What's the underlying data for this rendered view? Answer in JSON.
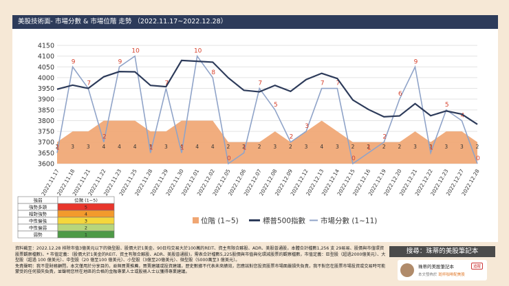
{
  "header": {
    "title": "美股技術面- 市場分數 & 市場位階 走勢 （2022.11.17~2022.12.28）"
  },
  "chart_data": {
    "type": "line",
    "title": "美股技術面- 市場分數 & 市場位階 走勢 （2022.11.17~2022.12.28）",
    "categories": [
      "2022.11.17",
      "2022.11.18",
      "2022.11.21",
      "2022.11.22",
      "2022.11.23",
      "2022.11.25",
      "2022.11.28",
      "2022.11.29",
      "2022.11.30",
      "2022.12.01",
      "2022.12.02",
      "2022.12.05",
      "2022.12.06",
      "2022.12.07",
      "2022.12.08",
      "2022.12.09",
      "2022.12.12",
      "2022.12.13",
      "2022.12.14",
      "2022.12.15",
      "2022.12.16",
      "2022.12.19",
      "2022.12.20",
      "2022.12.21",
      "2022.12.22",
      "2022.12.23",
      "2022.12.27",
      "2022.12.28"
    ],
    "ylim": [
      3600,
      4150
    ],
    "yticks": [
      3600,
      3650,
      3700,
      3750,
      3800,
      3850,
      3900,
      3950,
      4000,
      4050,
      4100,
      4150
    ],
    "series": [
      {
        "name": "位階 (1~5)",
        "kind": "area",
        "color": "#f0a673",
        "values": [
          2,
          3,
          3,
          4,
          4,
          4,
          3,
          3,
          4,
          4,
          4,
          2,
          2,
          2,
          3,
          2,
          3,
          4,
          3,
          2,
          2,
          2,
          2,
          3,
          2,
          3,
          3,
          2
        ]
      },
      {
        "name": "標普500指數",
        "kind": "line",
        "color": "#2d3b5a",
        "values": [
          3946,
          3965,
          3950,
          4004,
          4028,
          4027,
          3964,
          3958,
          4080,
          4076,
          4072,
          3999,
          3941,
          3934,
          3964,
          3936,
          3991,
          4020,
          3996,
          3896,
          3852,
          3818,
          3822,
          3879,
          3823,
          3845,
          3830,
          3783
        ]
      },
      {
        "name": "市場分數 (1~11)",
        "kind": "line",
        "color": "#8fa3c8",
        "values": [
          1,
          9,
          7,
          2,
          9,
          10,
          1,
          7,
          1,
          10,
          8,
          0,
          1,
          7,
          5,
          2,
          3,
          7,
          7,
          0,
          1,
          2,
          6,
          9,
          1,
          5,
          4,
          0
        ]
      }
    ],
    "legend": [
      "位階 (1~5)",
      "標普500指數",
      "市場分數 (1~11)"
    ]
  },
  "legend_table": {
    "headers": [
      "強弱",
      "位階 (1~5)"
    ],
    "rows": [
      {
        "label": "強勢多頭",
        "value": "5",
        "color": "#e8362b"
      },
      {
        "label": "相對強勢",
        "value": "4",
        "color": "#f39a2c"
      },
      {
        "label": "中性偏強",
        "value": "3",
        "color": "#f5d73c"
      },
      {
        "label": "中性偏弱",
        "value": "2",
        "color": "#b7d67c"
      },
      {
        "label": "弱勢",
        "value": "1",
        "color": "#4e9a47"
      }
    ]
  },
  "footer": {
    "note": "資料截至：2022.12.28 排除市值3億美元以下的微型股、股價大於1美金、90日均交易大於100萬的REIT、資主有限合夥股、ADR、美股普通股，本體合計檔數1,256 支 29易易、股價與市值環資股票觀察檔數)、* 市值定義：（股價大於1美金的REIT、資主有限合夥股、ADR、美股普通股)，需表合計檔數5,225股價與市值與化環減股票的觀察檔數，市值定義：巨型股（超過2000億美元）、大型股（超過 100 億美元）、中型股（20 億至100 億美元）、小型股（3億至20億美元）、微型股（5000萬至3 億美元）。",
    "disclaimer": "免責聲明：我不是財務顧問，本文僅用於分享目的，並無買賣推薦，買賣建議或投資建議，歷史數據不代表未來績效，您應該對您投資股票市場面嚴損失負責，我不對您在股票市場投資或交易時可能蒙受的任何損失負責，並聲明您所在地區的合格的金融專業人士或股務人士以獲得專業建議。",
    "search_label": "搜尋：珠蒂的美股筆記本",
    "profile_name": "珠蒂的美股筆記本",
    "profile_badge": "追蹤",
    "profile_note_prefix": "本文發佈於",
    "profile_note_link": "斑杯咖啡配美股"
  }
}
